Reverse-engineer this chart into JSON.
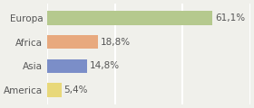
{
  "categories": [
    "America",
    "Asia",
    "Africa",
    "Europa"
  ],
  "values": [
    5.4,
    14.8,
    18.8,
    61.1
  ],
  "labels": [
    "5,4%",
    "14,8%",
    "18,8%",
    "61,1%"
  ],
  "bar_colors": [
    "#e8d87a",
    "#7b8ec8",
    "#e8a97e",
    "#b5c98e"
  ],
  "background_color": "#f0f0eb",
  "xlim": [
    0,
    75
  ],
  "bar_height": 0.58,
  "label_fontsize": 7.5,
  "tick_fontsize": 7.5,
  "grid_color": "#ffffff",
  "grid_linewidth": 1.5
}
